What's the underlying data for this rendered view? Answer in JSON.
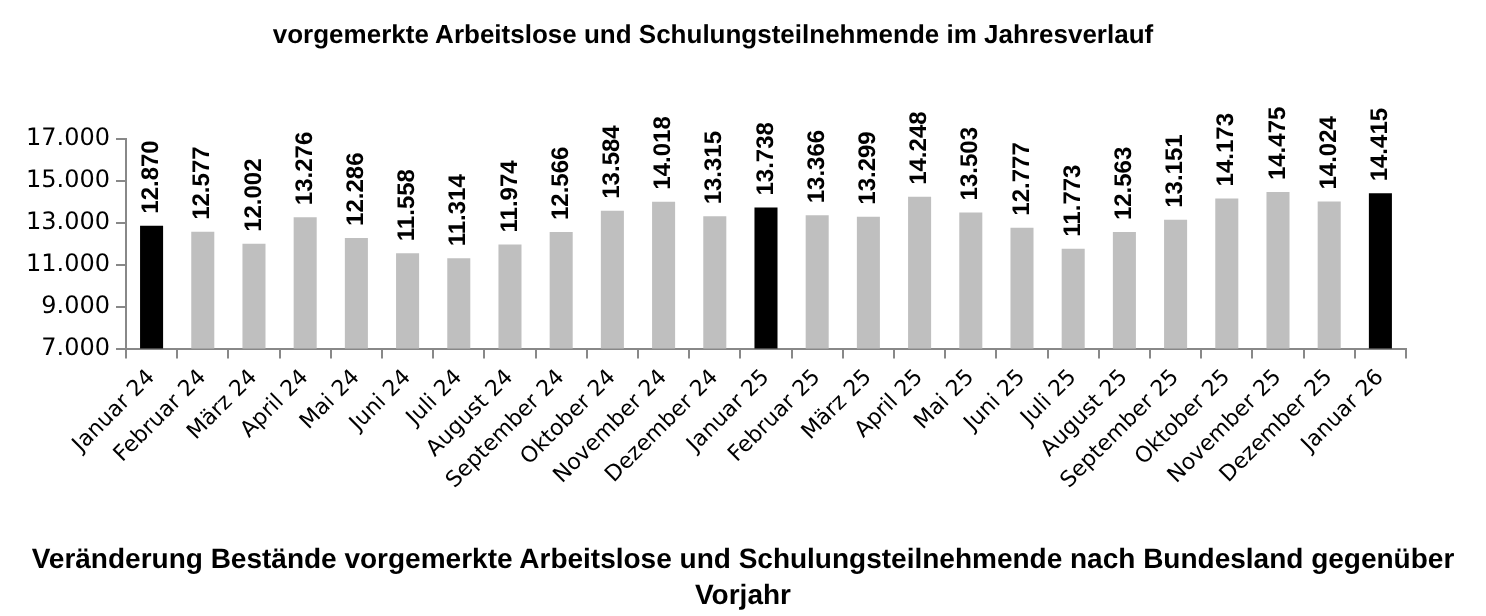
{
  "chart_data": {
    "type": "bar",
    "title": "vorgemerkte Arbeitslose und Schulungsteilnehmende im Jahresverlauf",
    "categories": [
      "Januar 24",
      "Februar 24",
      "März 24",
      "April 24",
      "Mai 24",
      "Juni 24",
      "Juli 24",
      "August 24",
      "September 24",
      "Oktober 24",
      "November 24",
      "Dezember 24",
      "Januar 25",
      "Februar 25",
      "März 25",
      "April 25",
      "Mai 25",
      "Juni 25",
      "Juli 25",
      "August 25",
      "September 25",
      "Oktober 25",
      "November 25",
      "Dezember 25",
      "Januar 26"
    ],
    "values": [
      12870,
      12577,
      12002,
      13276,
      12286,
      11558,
      11314,
      11974,
      12566,
      13584,
      14018,
      13315,
      13738,
      13366,
      13299,
      14248,
      13503,
      12777,
      11773,
      12563,
      13151,
      14173,
      14475,
      14024,
      14415
    ],
    "value_labels": [
      "12.870",
      "12.577",
      "12.002",
      "13.276",
      "12.286",
      "11.558",
      "11.314",
      "11.974",
      "12.566",
      "13.584",
      "14.018",
      "13.315",
      "13.738",
      "13.366",
      "13.299",
      "14.248",
      "13.503",
      "12.777",
      "11.773",
      "12.563",
      "13.151",
      "14.173",
      "14.475",
      "14.024",
      "14.415"
    ],
    "colors": [
      "#000000",
      "#bfbfbf",
      "#bfbfbf",
      "#bfbfbf",
      "#bfbfbf",
      "#bfbfbf",
      "#bfbfbf",
      "#bfbfbf",
      "#bfbfbf",
      "#bfbfbf",
      "#bfbfbf",
      "#bfbfbf",
      "#000000",
      "#bfbfbf",
      "#bfbfbf",
      "#bfbfbf",
      "#bfbfbf",
      "#bfbfbf",
      "#bfbfbf",
      "#bfbfbf",
      "#bfbfbf",
      "#bfbfbf",
      "#bfbfbf",
      "#bfbfbf",
      "#000000"
    ],
    "ylim": [
      7000,
      17000
    ],
    "yticks": [
      {
        "value": 7000,
        "label": "7.000"
      },
      {
        "value": 9000,
        "label": "9.000"
      },
      {
        "value": 11000,
        "label": "11.000"
      },
      {
        "value": 13000,
        "label": "13.000"
      },
      {
        "value": 15000,
        "label": "15.000"
      },
      {
        "value": 17000,
        "label": "17.000"
      }
    ],
    "grid": false,
    "legend": false,
    "annotations": [
      "Veränderung Bestände vorgemerkte Arbeitslose und Schulungsteilnehmende nach Bundesland gegenüber Vorjahr"
    ]
  }
}
